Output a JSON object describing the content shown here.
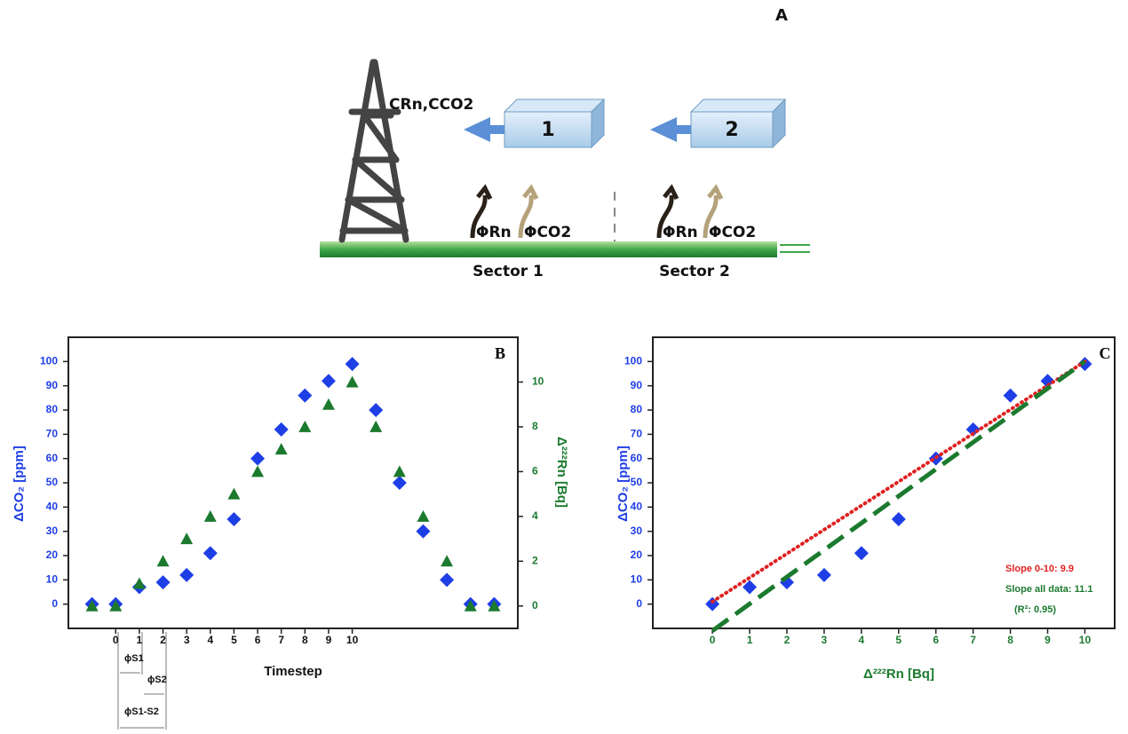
{
  "diagram": {
    "label": "A",
    "tower_label": "CRn,CCO2",
    "box_1": "1",
    "box_2": "2",
    "flux_rn_1": "ΦRn",
    "flux_co2_1": "ΦCO2",
    "flux_rn_2": "ΦRn",
    "flux_co2_2": "ΦCO2",
    "sector_1": "Sector 1",
    "sector_2": "Sector 2"
  },
  "chart_data": [
    {
      "type": "scatter",
      "title": "B",
      "x": [
        -1,
        0,
        1,
        2,
        3,
        4,
        5,
        6,
        7,
        8,
        9,
        10,
        11,
        12,
        13,
        14,
        15,
        16
      ],
      "xlim": [
        -2,
        17
      ],
      "xticks": [
        0,
        1,
        2,
        3,
        4,
        5,
        6,
        7,
        8,
        9,
        10
      ],
      "xlabel": "Timestep",
      "ylim": [
        -10,
        110
      ],
      "yticks": [
        0,
        10,
        20,
        30,
        40,
        50,
        60,
        70,
        80,
        90,
        100
      ],
      "ylabel": "ΔCO₂ [ppm]",
      "y2lim": [
        -1,
        12
      ],
      "y2ticks": [
        0,
        2,
        4,
        6,
        8,
        10
      ],
      "y2label": "Δ²²²Rn [Bq]",
      "series": [
        {
          "color": "#1e3ee6",
          "marker": "diamond",
          "values": [
            0,
            0,
            7,
            9,
            12,
            21,
            35,
            60,
            72,
            86,
            92,
            99,
            80,
            50,
            30,
            10,
            0,
            0
          ]
        },
        {
          "color": "#1b7a2e",
          "marker": "triangle",
          "axis": "y2",
          "values": [
            0,
            0,
            1,
            2,
            3,
            4,
            5,
            6,
            7,
            8,
            9,
            10,
            8,
            6,
            4,
            2,
            0,
            0
          ]
        }
      ],
      "annotations": [
        "ϕS1",
        "ϕS2",
        "ϕS1-S2"
      ]
    },
    {
      "type": "scatter",
      "title": "C",
      "xlim": [
        -1.6,
        10.8
      ],
      "xticks": [
        0,
        1,
        2,
        3,
        4,
        5,
        6,
        7,
        8,
        9,
        10
      ],
      "xlabel": "Δ²²²Rn [Bq]",
      "ylim": [
        -10,
        110
      ],
      "yticks": [
        0,
        10,
        20,
        30,
        40,
        50,
        60,
        70,
        80,
        90,
        100
      ],
      "ylabel": "ΔCO₂ [ppm]",
      "series": [
        {
          "color": "#1e3ee6",
          "marker": "diamond",
          "x": [
            0,
            1,
            2,
            3,
            4,
            5,
            6,
            7,
            8,
            9,
            10
          ],
          "values": [
            0,
            7,
            9,
            12,
            21,
            35,
            60,
            72,
            86,
            92,
            99
          ]
        },
        {
          "color": "#e02020",
          "marker": "line",
          "style": "dotted",
          "x": [
            0,
            10
          ],
          "values": [
            1,
            100
          ]
        },
        {
          "color": "#1b7a2e",
          "marker": "line",
          "style": "dashed",
          "x": [
            0,
            10
          ],
          "values": [
            -11,
            100
          ]
        }
      ],
      "annotations": [
        "Slope 0-10: 9.9",
        "Slope all data: 11.1",
        "(R²: 0.95)"
      ]
    }
  ]
}
